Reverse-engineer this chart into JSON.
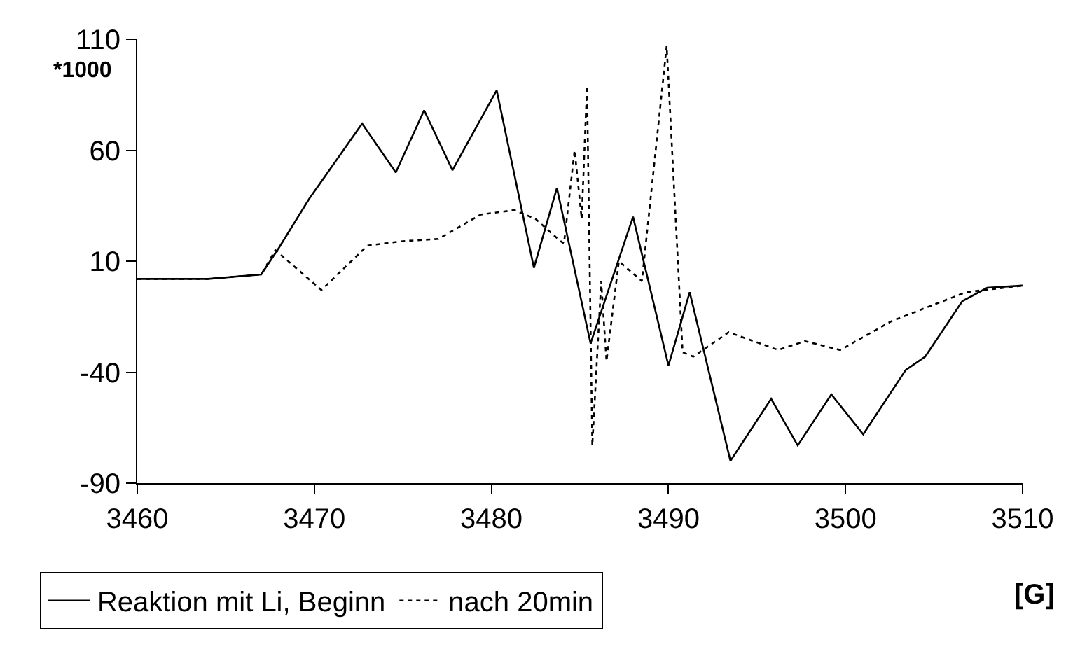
{
  "chart_data": {
    "type": "line",
    "xlabel": "[G]",
    "ylabel": "*1000",
    "xlim": [
      3460,
      3510
    ],
    "xticks": [
      3460,
      3470,
      3480,
      3490,
      3500,
      3510
    ],
    "ylim": [
      -90,
      110
    ],
    "yticks": [
      -90,
      -40,
      10,
      60,
      110
    ],
    "grid": false,
    "legend": "bottom left",
    "marker": "none",
    "series": [
      {
        "name": "Reaktion mit Li, Beginn",
        "color": "#000000",
        "line_style": "solid",
        "x": [
          3460,
          3464,
          3467,
          3468,
          3469.7,
          3472.7,
          3474.6,
          3476.2,
          3477.8,
          3480.3,
          3482.4,
          3483.7,
          3485.6,
          3488.0,
          3490.0,
          3491.2,
          3493.5,
          3495.8,
          3497.3,
          3499.2,
          3501.0,
          3503.4,
          3504.5,
          3506.6,
          3508,
          3510
        ],
        "values": [
          2,
          2,
          4,
          16,
          38,
          72,
          50,
          78,
          51,
          87,
          7,
          43,
          -27,
          30,
          -37,
          -4,
          -80,
          -52,
          -73,
          -50,
          -68,
          -39,
          -33,
          -8,
          -2,
          -1
        ]
      },
      {
        "name": "nach 20min",
        "color": "#000000",
        "line_style": "dotted",
        "x": [
          3460,
          3464,
          3467,
          3467.8,
          3470.4,
          3473,
          3475,
          3477,
          3479.4,
          3481.3,
          3482.5,
          3483.9,
          3484.1,
          3484.7,
          3485.1,
          3485.4,
          3485.7,
          3486.2,
          3486.5,
          3487.2,
          3488.5,
          3489.9,
          3490.8,
          3491.4,
          3493.4,
          3496.2,
          3497.7,
          3499.7,
          3502.6,
          3506.8,
          3510
        ],
        "values": [
          2,
          2,
          4,
          15,
          -3,
          17,
          19,
          20,
          31,
          33,
          29,
          19,
          18,
          60,
          29,
          89,
          -73,
          1,
          -35,
          10,
          1,
          107,
          -31,
          -33,
          -22,
          -30,
          -26,
          -30,
          -17,
          -4,
          -1
        ]
      }
    ]
  }
}
